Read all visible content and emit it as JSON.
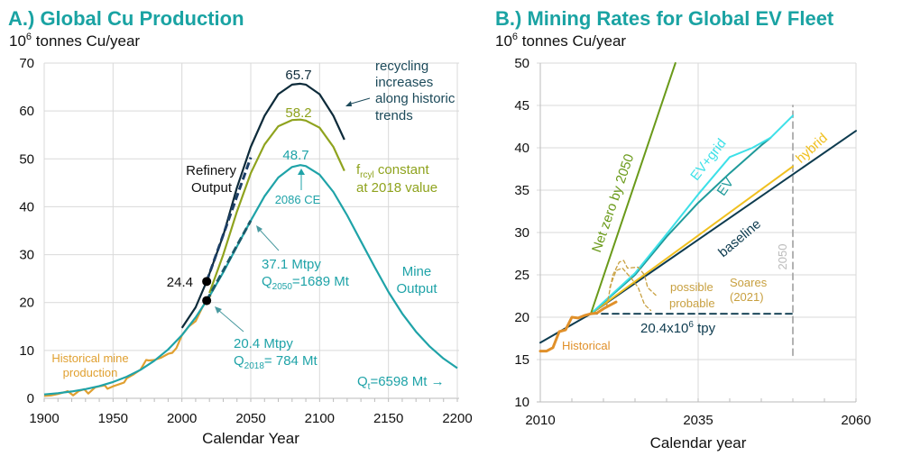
{
  "chart_data": [
    {
      "type": "line",
      "title": "A.) Global Cu Production",
      "ylabel": "10^6 tonnes Cu/year",
      "ylabel_parts": {
        "base": "10",
        "exp": "6",
        "rest": " tonnes  Cu/year"
      },
      "xlabel": "Calendar  Year",
      "xlim": [
        1900,
        2200
      ],
      "ylim": [
        0,
        70
      ],
      "xticks": [
        1900,
        1950,
        2000,
        2050,
        2100,
        2150,
        2200
      ],
      "yticks": [
        0,
        10,
        20,
        30,
        40,
        50,
        60,
        70
      ],
      "grid": true,
      "colors": {
        "title": "#1aa3a3",
        "mine": "#1fa3a8",
        "refinery_rising_recycling": "#0d2b3a",
        "refinery_constant_recycling": "#8fa31e",
        "historical": "#e0a030",
        "tangent_refinery": "#1c3f66",
        "tangent_mine": "#1a5a6a"
      },
      "series": [
        {
          "key": "mine",
          "points": [
            [
              1900,
              0.8
            ],
            [
              1910,
              1.07
            ],
            [
              1920,
              1.43
            ],
            [
              1930,
              1.92
            ],
            [
              1940,
              2.56
            ],
            [
              1950,
              3.4
            ],
            [
              1960,
              4.52
            ],
            [
              1970,
              5.97
            ],
            [
              1980,
              7.85
            ],
            [
              1990,
              10.2
            ],
            [
              2000,
              13.2
            ],
            [
              2010,
              16.9
            ],
            [
              2018,
              20.4
            ],
            [
              2020,
              21.3
            ],
            [
              2030,
              26.3
            ],
            [
              2040,
              31.7
            ],
            [
              2050,
              37.1
            ],
            [
              2060,
              42.2
            ],
            [
              2070,
              46.1
            ],
            [
              2080,
              48.3
            ],
            [
              2086,
              48.7
            ],
            [
              2090,
              48.5
            ],
            [
              2100,
              46.7
            ],
            [
              2110,
              43.1
            ],
            [
              2120,
              38.2
            ],
            [
              2130,
              32.8
            ],
            [
              2140,
              27.4
            ],
            [
              2150,
              22.2
            ],
            [
              2160,
              17.7
            ],
            [
              2170,
              13.9
            ],
            [
              2180,
              10.8
            ],
            [
              2190,
              8.3
            ],
            [
              2200,
              6.3
            ]
          ]
        },
        {
          "key": "refinery_rising_recycling",
          "points": [
            [
              2000,
              14.7
            ],
            [
              2010,
              19
            ],
            [
              2018,
              24.4
            ],
            [
              2030,
              34
            ],
            [
              2040,
              44
            ],
            [
              2050,
              52.5
            ],
            [
              2060,
              59
            ],
            [
              2070,
              63.5
            ],
            [
              2080,
              65.5
            ],
            [
              2086,
              65.7
            ],
            [
              2090,
              65.5
            ],
            [
              2100,
              63.5
            ],
            [
              2110,
              59
            ],
            [
              2118,
              54
            ]
          ]
        },
        {
          "key": "refinery_constant_recycling",
          "points": [
            [
              2020,
              22
            ],
            [
              2030,
              30
            ],
            [
              2040,
              39
            ],
            [
              2050,
              47
            ],
            [
              2060,
              53
            ],
            [
              2070,
              56.8
            ],
            [
              2080,
              58.1
            ],
            [
              2086,
              58.2
            ],
            [
              2090,
              58
            ],
            [
              2100,
              56.5
            ],
            [
              2110,
              52.5
            ],
            [
              2118,
              47.5
            ]
          ]
        },
        {
          "key": "tangent_refinery",
          "dashed": true,
          "points": [
            [
              2018,
              24.4
            ],
            [
              2050,
              50.3
            ]
          ]
        },
        {
          "key": "tangent_mine",
          "dashed": true,
          "points": [
            [
              2018,
              20.4
            ],
            [
              2050,
              37.1
            ]
          ]
        },
        {
          "key": "historical",
          "points": [
            [
              1900,
              0.5
            ],
            [
              1905,
              0.6
            ],
            [
              1910,
              0.9
            ],
            [
              1915,
              1.3
            ],
            [
              1917,
              1.5
            ],
            [
              1921,
              0.6
            ],
            [
              1925,
              1.5
            ],
            [
              1929,
              1.9
            ],
            [
              1932,
              1.0
            ],
            [
              1937,
              2.3
            ],
            [
              1940,
              2.5
            ],
            [
              1944,
              2.7
            ],
            [
              1946,
              2.0
            ],
            [
              1950,
              2.5
            ],
            [
              1955,
              3.0
            ],
            [
              1958,
              3.3
            ],
            [
              1960,
              4.2
            ],
            [
              1965,
              5.0
            ],
            [
              1970,
              6.0
            ],
            [
              1974,
              8.0
            ],
            [
              1976,
              7.9
            ],
            [
              1980,
              8.0
            ],
            [
              1985,
              8.5
            ],
            [
              1990,
              9.3
            ],
            [
              1993,
              9.5
            ],
            [
              1996,
              10.5
            ],
            [
              2000,
              13.2
            ],
            [
              2005,
              15.0
            ],
            [
              2010,
              16.1
            ],
            [
              2015,
              19.1
            ],
            [
              2018,
              20.4
            ],
            [
              2021,
              21.5
            ]
          ]
        }
      ],
      "markers": [
        [
          2018,
          24.4
        ],
        [
          2018,
          20.4
        ]
      ],
      "annotations": {
        "peak_refinery": "65.7",
        "peak_constant": "58.2",
        "peak_mine": "48.7",
        "recycling": [
          "recycling",
          "increases",
          "along historic",
          "trends"
        ],
        "refinery_output": [
          "Refinery",
          "Output"
        ],
        "frcyl": {
          "f": "f",
          "sub": "rcyl",
          "rest": " constant",
          "line2": "at 2018 value"
        },
        "peak_year": "2086 CE",
        "refinery_2018": "24.4",
        "mpy_2050": "37.1 Mtpy",
        "q2050": {
          "q": "Q",
          "sub": "2050",
          "rest": "=1689 Mt"
        },
        "mine_output": [
          "Mine",
          "Output"
        ],
        "mpy_2018": "20.4 Mtpy",
        "q2018": {
          "q": "Q",
          "sub": "2018",
          "rest": "= 784 Mt"
        },
        "historical": [
          "Historical mine",
          "production"
        ],
        "qt": {
          "q": "Q",
          "sub": "t",
          "rest": "=6598 Mt →"
        }
      }
    },
    {
      "type": "line",
      "title": "B.) Mining Rates for Global EV Fleet",
      "ylabel": "10^6 tonnes Cu/year",
      "ylabel_parts": {
        "base": "10",
        "exp": "6",
        "rest": " tonnes  Cu/year"
      },
      "xlabel": "Calendar  year",
      "xlim": [
        2010,
        2060
      ],
      "ylim": [
        10,
        50
      ],
      "xticks": [
        2010,
        2035,
        2060
      ],
      "yticks": [
        10,
        15,
        20,
        25,
        30,
        35,
        40,
        45,
        50
      ],
      "grid": true,
      "colors": {
        "baseline": "#0d3b4f",
        "net_zero": "#6a9a1a",
        "ev_grid": "#3de0e8",
        "ev": "#1f9a9a",
        "hybrid": "#f0c020",
        "historical": "#e0902a",
        "soares": "#c8a040",
        "ref_2050": "#aaaaaa"
      },
      "series": [
        {
          "key": "ref_level",
          "color_key": "baseline",
          "dashed": true,
          "points": [
            [
              2018,
              20.4
            ],
            [
              2050,
              20.4
            ]
          ]
        },
        {
          "key": "ref_2050",
          "color_key": "ref_2050",
          "dashed": true,
          "points": [
            [
              2050,
              15.5
            ],
            [
              2050,
              45
            ]
          ]
        },
        {
          "key": "baseline",
          "color_key": "baseline",
          "points": [
            [
              2010,
              17
            ],
            [
              2018,
              20.4
            ],
            [
              2060,
              42
            ]
          ]
        },
        {
          "key": "hybrid",
          "color_key": "hybrid",
          "points": [
            [
              2018,
              20.4
            ],
            [
              2050,
              37.8
            ]
          ]
        },
        {
          "key": "ev",
          "color_key": "ev",
          "points": [
            [
              2018,
              20.4
            ],
            [
              2025,
              25
            ],
            [
              2030,
              29.5
            ],
            [
              2035,
              33.5
            ],
            [
              2040,
              37
            ],
            [
              2045,
              40.3
            ],
            [
              2046.5,
              41.2
            ]
          ]
        },
        {
          "key": "ev_grid",
          "color_key": "ev_grid",
          "points": [
            [
              2018,
              20.4
            ],
            [
              2025,
              25.2
            ],
            [
              2030,
              29.8
            ],
            [
              2035,
              34.5
            ],
            [
              2040,
              38.9
            ],
            [
              2043.6,
              40
            ],
            [
              2046.5,
              41.2
            ],
            [
              2050,
              43.8
            ]
          ]
        },
        {
          "key": "net_zero",
          "color_key": "net_zero",
          "points": [
            [
              2018,
              20.4
            ],
            [
              2031.4,
              50
            ]
          ]
        },
        {
          "key": "soares_possible",
          "color_key": "soares",
          "dashed": true,
          "points": [
            [
              2020.5,
              21.3
            ],
            [
              2021.5,
              25
            ],
            [
              2022.5,
              26.5
            ],
            [
              2023.2,
              26.7
            ],
            [
              2023.8,
              25.8
            ],
            [
              2025.5,
              25.9
            ],
            [
              2026.5,
              25
            ],
            [
              2027,
              23.5
            ],
            [
              2028.3,
              22.6
            ]
          ]
        },
        {
          "key": "soares_probable",
          "color_key": "soares",
          "dashed": true,
          "points": [
            [
              2021,
              23.5
            ],
            [
              2022,
              25.5
            ],
            [
              2023,
              25.8
            ],
            [
              2024.5,
              24.5
            ],
            [
              2025.5,
              23.5
            ],
            [
              2026.5,
              21.5
            ],
            [
              2027.5,
              20.8
            ]
          ]
        },
        {
          "key": "historical",
          "color_key": "historical",
          "thick": true,
          "points": [
            [
              2010,
              16
            ],
            [
              2011,
              16
            ],
            [
              2012,
              16.4
            ],
            [
              2013,
              18.3
            ],
            [
              2014,
              18.5
            ],
            [
              2015,
              20
            ],
            [
              2016,
              19.9
            ],
            [
              2017,
              20.2
            ],
            [
              2018,
              20.4
            ],
            [
              2019,
              20.5
            ],
            [
              2020,
              21
            ],
            [
              2022,
              21.8
            ]
          ]
        }
      ],
      "annotations": {
        "net_zero": "Net zero by 2050",
        "ev_grid": "EV+grid",
        "ev": "EV",
        "baseline": "baseline",
        "hybrid": "hybrid",
        "year_2050": "2050",
        "possible": "possible",
        "probable": "probable",
        "soares": [
          "Soares",
          "(2021)"
        ],
        "ref_level": {
          "base": "20.4x10",
          "exp": "6",
          "rest": " tpy"
        },
        "historical": "Historical"
      }
    }
  ]
}
